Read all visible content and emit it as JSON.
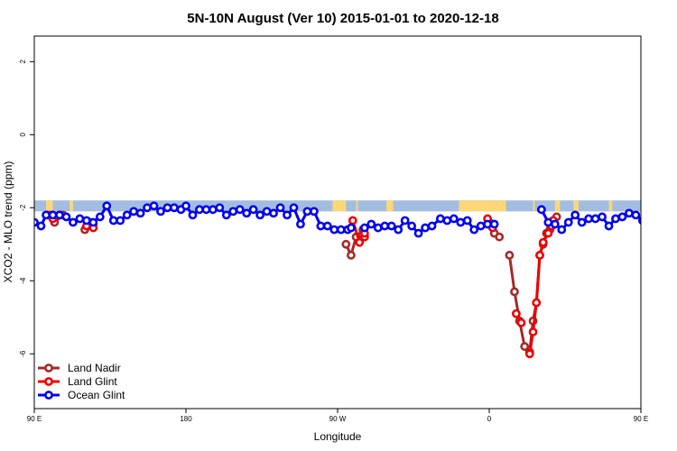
{
  "chart_data": {
    "type": "line",
    "title": "5N-10N August (Ver 10)   2015-01-01 to 2020-12-18",
    "xlabel": "Longitude",
    "ylabel": "XCO2 - MLO trend (ppm)",
    "xlim": [
      90,
      450
    ],
    "ylim": [
      -7.5,
      2.7
    ],
    "x_ticks": [
      {
        "value": 90,
        "label": "90 E"
      },
      {
        "value": 180,
        "label": "180"
      },
      {
        "value": 270,
        "label": "90 W"
      },
      {
        "value": 360,
        "label": "0"
      },
      {
        "value": 450,
        "label": "90 E"
      },
      {
        "value": 540,
        "label": "180"
      }
    ],
    "y_ticks": [
      {
        "value": 2,
        "label": "2"
      },
      {
        "value": 0,
        "label": "0"
      },
      {
        "value": -2,
        "label": "-2"
      },
      {
        "value": -4,
        "label": "-4"
      },
      {
        "value": -6,
        "label": "-6"
      }
    ],
    "grid": false,
    "legend_position": "bottom-left",
    "background_band": {
      "ymin": -2.1,
      "ymax": -1.8,
      "ocean_color": "#a3bde0",
      "land_color": "#fbd77a"
    },
    "land_segments": [
      [
        97,
        101
      ],
      [
        111,
        113
      ],
      [
        267,
        275
      ],
      [
        281,
        282
      ],
      [
        299,
        303
      ],
      [
        342,
        370
      ],
      [
        386,
        387
      ],
      [
        399,
        402
      ],
      [
        410,
        413
      ],
      [
        431,
        433
      ],
      [
        454,
        460
      ],
      [
        472,
        474
      ],
      [
        484,
        487
      ]
    ],
    "series": [
      {
        "name": "Land Nadir",
        "color": "#a52a2a",
        "segments": [
          {
            "x": [
              100,
              102,
              107
            ],
            "y": [
              -2.2,
              -2.4,
              -2.2
            ]
          },
          {
            "x": [
              120,
              123,
              125
            ],
            "y": [
              -2.6,
              -2.4,
              -2.45
            ]
          },
          {
            "x": [
              275,
              278,
              281,
              285
            ],
            "y": [
              -3.0,
              -3.3,
              -2.8,
              -2.6
            ]
          },
          {
            "x": [
              360,
              363,
              366
            ],
            "y": [
              -2.4,
              -2.7,
              -2.8
            ]
          },
          {
            "x": [
              372,
              375,
              378,
              381,
              384,
              386,
              388,
              390,
              392,
              394,
              396,
              398,
              400
            ],
            "y": [
              -3.3,
              -4.3,
              -5.1,
              -5.8,
              -5.95,
              -5.1,
              -4.6,
              -3.3,
              -3.0,
              -2.7,
              -2.6,
              -2.35,
              -2.25
            ]
          },
          {
            "x": [
              456,
              459,
              462
            ],
            "y": [
              -2.2,
              -2.35,
              -2.3
            ]
          },
          {
            "x": [
              472,
              475,
              478
            ],
            "y": [
              -2.6,
              -2.5,
              -2.4
            ]
          }
        ]
      },
      {
        "name": "Land Glint",
        "color": "#ee0000",
        "segments": [
          {
            "x": [
              98,
              101,
              105
            ],
            "y": [
              -2.2,
              -2.3,
              -2.2
            ]
          },
          {
            "x": [
              121,
              125
            ],
            "y": [
              -2.5,
              -2.55
            ]
          },
          {
            "x": [
              279,
              283,
              286
            ],
            "y": [
              -2.35,
              -2.95,
              -2.8
            ]
          },
          {
            "x": [
              286
            ],
            "y": [
              -2.7
            ]
          },
          {
            "x": [
              359,
              362
            ],
            "y": [
              -2.3,
              -2.55
            ]
          },
          {
            "x": [
              376,
              379
            ],
            "y": [
              -4.9,
              -5.15
            ]
          },
          {
            "x": [
              384,
              386,
              388,
              390,
              392,
              395,
              397,
              398
            ],
            "y": [
              -6.0,
              -5.4,
              -4.6,
              -3.3,
              -2.95,
              -2.7,
              -2.5,
              -2.35
            ]
          },
          {
            "x": [
              457,
              459,
              461
            ],
            "y": [
              -2.15,
              -2.2,
              -2.25
            ]
          },
          {
            "x": [
              478
            ],
            "y": [
              -2.6
            ]
          }
        ]
      },
      {
        "name": "Ocean Glint",
        "color": "#0000ee",
        "segments": [
          {
            "x": [
              90,
              94,
              97,
              101,
              105,
              109,
              113,
              117,
              121,
              125,
              129,
              133,
              137,
              141,
              145,
              149,
              153,
              157,
              161,
              165,
              169,
              173,
              177,
              180,
              184,
              188,
              192,
              196,
              200,
              204,
              208,
              212,
              216,
              220,
              224,
              228,
              232,
              236,
              240,
              244,
              248,
              252,
              256,
              260,
              264,
              268,
              272,
              276,
              278
            ],
            "y": [
              -2.4,
              -2.5,
              -2.2,
              -2.2,
              -2.2,
              -2.25,
              -2.4,
              -2.3,
              -2.35,
              -2.4,
              -2.25,
              -1.95,
              -2.35,
              -2.35,
              -2.2,
              -2.1,
              -2.15,
              -2.0,
              -1.95,
              -2.1,
              -2.0,
              -2.0,
              -2.05,
              -1.95,
              -2.2,
              -2.05,
              -2.05,
              -2.05,
              -2.0,
              -2.2,
              -2.1,
              -2.05,
              -2.15,
              -2.05,
              -2.2,
              -2.1,
              -2.15,
              -2.0,
              -2.2,
              -2.0,
              -2.45,
              -2.1,
              -2.1,
              -2.5,
              -2.5,
              -2.6,
              -2.6,
              -2.6,
              -2.55
            ]
          },
          {
            "x": [
              286,
              290,
              294,
              298,
              302,
              306,
              310,
              314,
              318,
              322,
              326,
              331,
              335,
              339,
              343,
              347,
              351,
              355,
              359,
              363
            ],
            "y": [
              -2.55,
              -2.45,
              -2.55,
              -2.5,
              -2.5,
              -2.6,
              -2.35,
              -2.5,
              -2.7,
              -2.55,
              -2.5,
              -2.3,
              -2.35,
              -2.3,
              -2.4,
              -2.35,
              -2.6,
              -2.5,
              -2.45,
              -2.45
            ]
          },
          {
            "x": [
              391,
              395,
              399,
              403,
              407,
              411,
              415,
              419,
              423,
              427,
              431,
              435,
              439,
              443,
              447,
              451,
              455,
              459,
              463,
              467,
              471,
              475,
              479,
              483,
              487,
              491,
              495,
              499,
              503,
              507,
              511,
              515,
              519
            ],
            "y": [
              -2.05,
              -2.4,
              -2.45,
              -2.6,
              -2.4,
              -2.2,
              -2.4,
              -2.3,
              -2.3,
              -2.25,
              -2.5,
              -2.3,
              -2.25,
              -2.15,
              -2.2,
              -2.35,
              -2.3,
              -2.3,
              -2.35,
              -2.3,
              -2.4,
              -1.95,
              -2.35,
              -2.3,
              -2.25,
              -2.2,
              -2.15,
              -2.1,
              -2.05,
              -2.0,
              -1.95,
              -2.05,
              -2.1
            ]
          }
        ]
      }
    ]
  }
}
